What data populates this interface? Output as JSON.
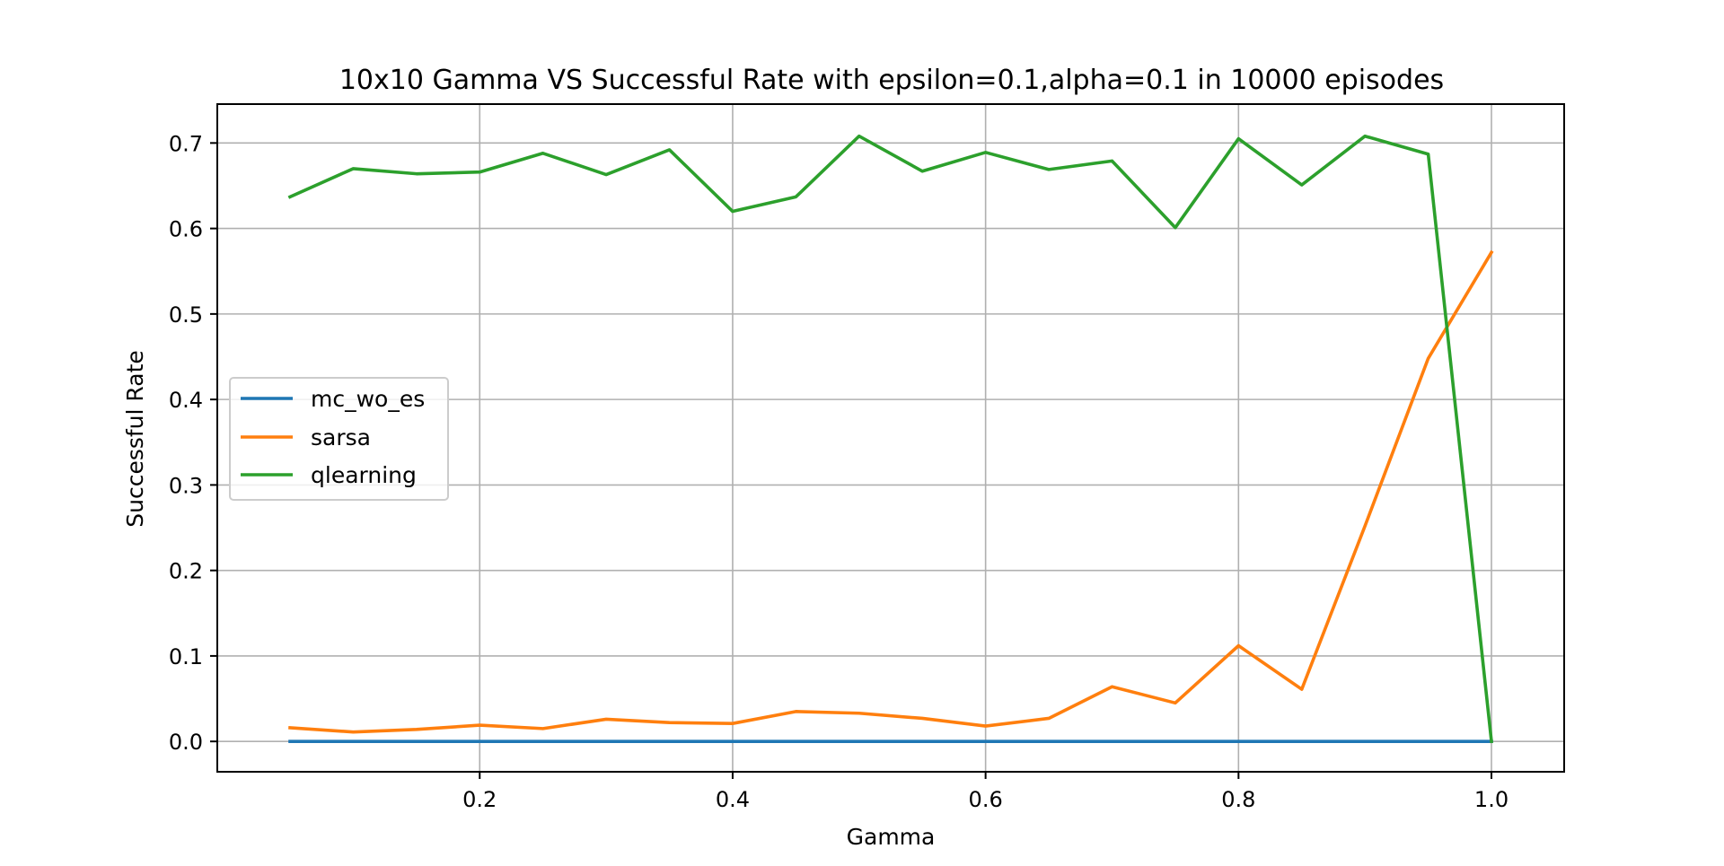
{
  "chart_data": {
    "type": "line",
    "title": "10x10 Gamma VS Successful Rate with epsilon=0.1,alpha=0.1 in 10000 episodes",
    "xlabel": "Gamma",
    "ylabel": "Successful Rate",
    "xlim": [
      -0.0075,
      1.0575
    ],
    "ylim": [
      -0.0355,
      0.7455
    ],
    "x_ticks": [
      0.2,
      0.4,
      0.6,
      0.8,
      1.0
    ],
    "x_tick_labels": [
      "0.2",
      "0.4",
      "0.6",
      "0.8",
      "1.0"
    ],
    "y_ticks": [
      0.0,
      0.1,
      0.2,
      0.3,
      0.4,
      0.5,
      0.6,
      0.7
    ],
    "y_tick_labels": [
      "0.0",
      "0.1",
      "0.2",
      "0.3",
      "0.4",
      "0.5",
      "0.6",
      "0.7"
    ],
    "grid": true,
    "legend_position": "center-left",
    "x": [
      0.05,
      0.1,
      0.15,
      0.2,
      0.25,
      0.3,
      0.35,
      0.4,
      0.45,
      0.5,
      0.55,
      0.6,
      0.65,
      0.7,
      0.75,
      0.8,
      0.85,
      0.9,
      0.95,
      1.0
    ],
    "series": [
      {
        "name": "mc_wo_es",
        "color": "#1f77b4",
        "values": [
          0,
          0,
          0,
          0,
          0,
          0,
          0,
          0,
          0,
          0,
          0,
          0,
          0,
          0,
          0,
          0,
          0,
          0,
          0,
          0
        ]
      },
      {
        "name": "sarsa",
        "color": "#ff7f0e",
        "values": [
          0.016,
          0.011,
          0.014,
          0.019,
          0.015,
          0.026,
          0.022,
          0.021,
          0.035,
          0.033,
          0.027,
          0.018,
          0.027,
          0.064,
          0.045,
          0.112,
          0.061,
          0.252,
          0.448,
          0.572
        ]
      },
      {
        "name": "qlearning",
        "color": "#2ca02c",
        "values": [
          0.637,
          0.67,
          0.664,
          0.666,
          0.688,
          0.663,
          0.692,
          0.62,
          0.637,
          0.708,
          0.667,
          0.689,
          0.669,
          0.679,
          0.601,
          0.705,
          0.651,
          0.708,
          0.687,
          0.0
        ]
      }
    ]
  }
}
